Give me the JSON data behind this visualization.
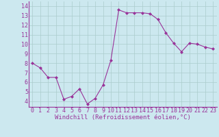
{
  "x": [
    0,
    1,
    2,
    3,
    4,
    5,
    6,
    7,
    8,
    9,
    10,
    11,
    12,
    13,
    14,
    15,
    16,
    17,
    18,
    19,
    20,
    21,
    22,
    23
  ],
  "y": [
    8.0,
    7.5,
    6.5,
    6.5,
    4.2,
    4.5,
    5.3,
    3.7,
    4.3,
    5.7,
    8.3,
    13.6,
    13.3,
    13.3,
    13.3,
    13.2,
    12.6,
    11.2,
    10.1,
    9.2,
    10.1,
    10.0,
    9.7,
    9.5
  ],
  "line_color": "#993399",
  "marker": "D",
  "marker_size": 2.0,
  "bg_color": "#cce8ef",
  "grid_color": "#aacccc",
  "xlabel": "Windchill (Refroidissement éolien,°C)",
  "xlabel_color": "#993399",
  "tick_color": "#993399",
  "xlim": [
    -0.5,
    23.5
  ],
  "ylim": [
    3.4,
    14.5
  ],
  "xticks": [
    0,
    1,
    2,
    3,
    4,
    5,
    6,
    7,
    8,
    9,
    10,
    11,
    12,
    13,
    14,
    15,
    16,
    17,
    18,
    19,
    20,
    21,
    22,
    23
  ],
  "yticks": [
    4,
    5,
    6,
    7,
    8,
    9,
    10,
    11,
    12,
    13,
    14
  ],
  "tick_fontsize": 6.0,
  "xlabel_fontsize": 6.5,
  "linewidth": 0.8
}
